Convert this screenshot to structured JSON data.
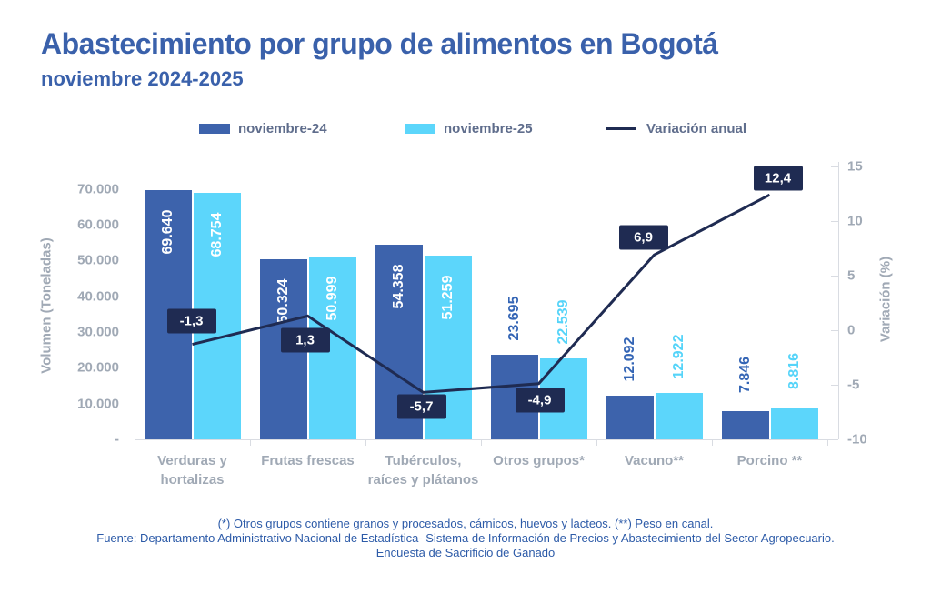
{
  "header": {
    "title": "Abastecimiento por grupo de alimentos en Bogotá",
    "subtitle": "noviembre 2024-2025"
  },
  "legend": {
    "items": [
      {
        "label": "noviembre-24",
        "color": "#3d63ac",
        "type": "swatch"
      },
      {
        "label": "noviembre-25",
        "color": "#5cd6fb",
        "type": "swatch"
      },
      {
        "label": "Variación anual",
        "color": "#1f2b52",
        "type": "line"
      }
    ]
  },
  "chart_data": {
    "type": "bar",
    "categories": [
      "Verduras y hortalizas",
      "Frutas frescas",
      "Tubérculos, raíces y plátanos",
      "Otros grupos*",
      "Vacuno**",
      "Porcino **"
    ],
    "category_label_lines": [
      [
        "Verduras y",
        "hortalizas"
      ],
      [
        "Frutas frescas"
      ],
      [
        "Tubérculos,",
        "raíces y plátanos"
      ],
      [
        "Otros grupos*"
      ],
      [
        "Vacuno**"
      ],
      [
        "Porcino **"
      ]
    ],
    "series": [
      {
        "name": "noviembre-24",
        "values": [
          69640,
          50324,
          54358,
          23695,
          12092,
          7846
        ],
        "labels": [
          "69.640",
          "50.324",
          "54.358",
          "23.695",
          "12.092",
          "7.846"
        ],
        "color": "#3d63ac",
        "outside_label_color": "#3465b5"
      },
      {
        "name": "noviembre-25",
        "values": [
          68754,
          50999,
          51259,
          22539,
          12922,
          8816
        ],
        "labels": [
          "68.754",
          "50.999",
          "51.259",
          "22.539",
          "12.922",
          "8.816"
        ],
        "color": "#5cd6fb",
        "outside_label_color": "#55d4f9"
      }
    ],
    "line_series": {
      "name": "Variación anual",
      "values": [
        -1.3,
        1.3,
        -5.7,
        -4.9,
        6.9,
        12.4
      ],
      "labels": [
        "-1,3",
        "1,3",
        "-5,7",
        "-4,9",
        "6,9",
        "12,4"
      ],
      "color": "#1f2b52"
    },
    "y_left": {
      "label": "Volumen (Toneladas)",
      "ticks": [
        "70.000",
        "60.000",
        "50.000",
        "40.000",
        "30.000",
        "20.000",
        "10.000",
        "-"
      ],
      "tick_values": [
        70000,
        60000,
        50000,
        40000,
        30000,
        20000,
        10000,
        0
      ],
      "range": [
        0,
        70000
      ]
    },
    "y_right": {
      "label": "Variación (%)",
      "ticks": [
        "15",
        "10",
        "5",
        "0",
        "-5",
        "-10"
      ],
      "tick_values": [
        15,
        10,
        5,
        0,
        -5,
        -10
      ],
      "range": [
        -10,
        15
      ]
    },
    "legend_position": "top",
    "grid": "off"
  },
  "footnotes": {
    "line1": "(*) Otros grupos contiene granos y procesados, cárnicos, huevos y lacteos. (**) Peso en canal.",
    "line2": "Fuente: Departamento Administrativo Nacional de Estadística- Sistema de Información de Precios y Abastecimiento del Sector Agropecuario.",
    "line3": "Encuesta de  Sacrificio de Ganado"
  }
}
